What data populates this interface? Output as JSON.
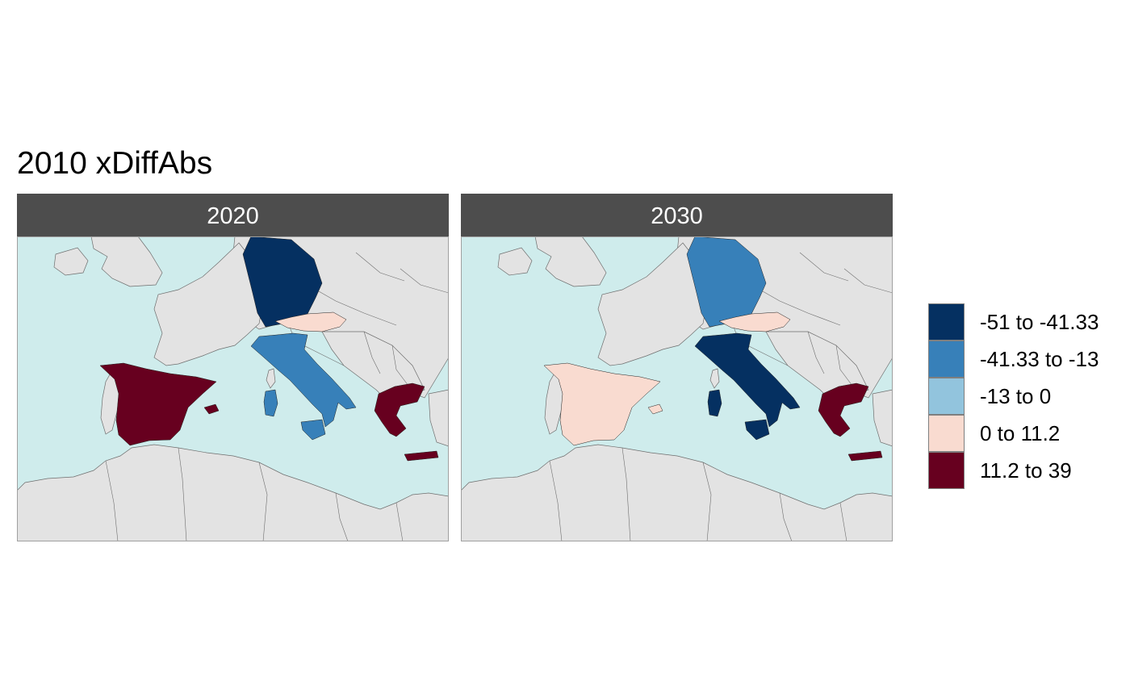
{
  "title": "2010 xDiffAbs",
  "colors": {
    "sea": "#cfecec",
    "land": "#e3e3e3",
    "border": "#6e6e6e",
    "strip_bg": "#4d4d4d",
    "strip_text": "#ffffff"
  },
  "legend": {
    "items": [
      {
        "label": "-51 to -41.33",
        "color": "#053061"
      },
      {
        "label": "-41.33 to -13",
        "color": "#3780b9"
      },
      {
        "label": "-13 to 0",
        "color": "#92c4dd"
      },
      {
        "label": "0 to 11.2",
        "color": "#f9dbd0"
      },
      {
        "label": "11.2 to 39",
        "color": "#67001f"
      }
    ]
  },
  "panels": [
    {
      "label": "2020",
      "countries": {
        "Germany": "#053061",
        "Austria": "#f9dbd0",
        "Italy": "#3780b9",
        "Spain": "#67001f",
        "Greece": "#67001f"
      }
    },
    {
      "label": "2030",
      "countries": {
        "Germany": "#3780b9",
        "Austria": "#f9dbd0",
        "Italy": "#053061",
        "Spain": "#f9dbd0",
        "Greece": "#67001f"
      }
    }
  ]
}
